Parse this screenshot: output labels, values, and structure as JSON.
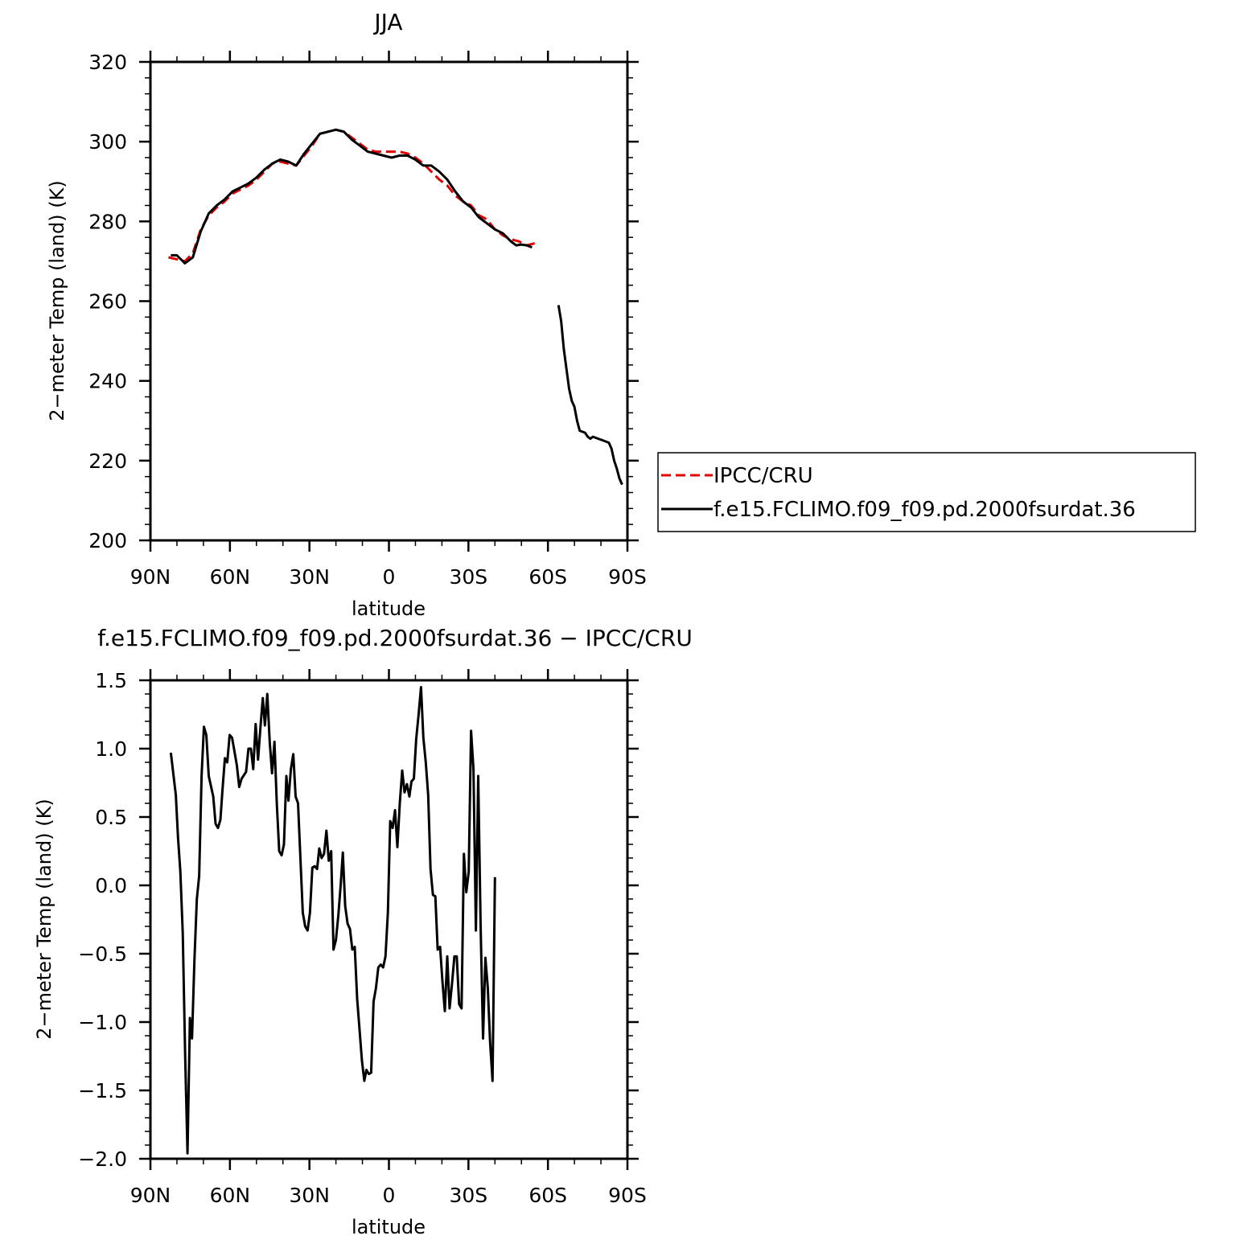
{
  "chart_data": [
    {
      "type": "line",
      "title": "JJA",
      "xlabel": "latitude",
      "ylabel": "2−meter Temp (land) (K)",
      "xlim": [
        90,
        -90
      ],
      "ylim": [
        200,
        320
      ],
      "x_tick_values": [
        90,
        60,
        30,
        0,
        -30,
        -60,
        -90
      ],
      "x_tick_labels": [
        "90N",
        "60N",
        "30N",
        "0",
        "30S",
        "60S",
        "90S"
      ],
      "y_tick_values": [
        200,
        220,
        240,
        260,
        280,
        300,
        320
      ],
      "y_tick_labels": [
        "200",
        "220",
        "240",
        "260",
        "280",
        "300",
        "320"
      ],
      "legend_position": "right",
      "series": [
        {
          "name": "IPCC/CRU",
          "color": "#e00000",
          "style": "dashed",
          "points": [
            [
              83.2,
              271
            ],
            [
              80,
              270.5
            ],
            [
              77,
              270
            ],
            [
              74,
              272
            ],
            [
              71,
              278
            ],
            [
              68,
              281.5
            ],
            [
              65,
              283.5
            ],
            [
              62,
              285
            ],
            [
              59,
              287
            ],
            [
              56,
              288
            ],
            [
              53,
              289
            ],
            [
              50,
              290.5
            ],
            [
              47,
              292.5
            ],
            [
              44,
              294.5
            ],
            [
              41,
              295
            ],
            [
              38,
              294.5
            ],
            [
              35,
              294
            ],
            [
              32,
              296.5
            ],
            [
              29,
              299
            ],
            [
              26,
              302
            ],
            [
              23,
              302.5
            ],
            [
              20,
              303
            ],
            [
              17,
              302.5
            ],
            [
              14,
              301
            ],
            [
              11,
              299.5
            ],
            [
              8,
              298
            ],
            [
              5,
              297.5
            ],
            [
              2,
              297.5
            ],
            [
              -1,
              297.5
            ],
            [
              -4,
              297.5
            ],
            [
              -7,
              297
            ],
            [
              -10,
              296
            ],
            [
              -13,
              294.5
            ],
            [
              -16,
              292.5
            ],
            [
              -19,
              290.5
            ],
            [
              -22,
              289
            ],
            [
              -25,
              286.5
            ],
            [
              -28,
              285
            ],
            [
              -31,
              284
            ],
            [
              -34,
              281.5
            ],
            [
              -37,
              280.5
            ],
            [
              -40,
              278
            ],
            [
              -43,
              276.5
            ],
            [
              -46,
              275.5
            ],
            [
              -49,
              275
            ],
            [
              -52,
              274
            ],
            [
              -55,
              274.5
            ]
          ]
        },
        {
          "name": "f.e15.FCLIMO.f09_f09.pd.2000fsurdat.36",
          "color": "#000000",
          "style": "solid",
          "points": [
            [
              82.3,
              271.5
            ],
            [
              80,
              271.5
            ],
            [
              77,
              269.5
            ],
            [
              74,
              271
            ],
            [
              71,
              277.5
            ],
            [
              68,
              282
            ],
            [
              65,
              284
            ],
            [
              62,
              285.5
            ],
            [
              59,
              287.5
            ],
            [
              56,
              288.5
            ],
            [
              53,
              289.5
            ],
            [
              50,
              291
            ],
            [
              47,
              293
            ],
            [
              44,
              294.5
            ],
            [
              41,
              295.5
            ],
            [
              38,
              295
            ],
            [
              35,
              294
            ],
            [
              32,
              297
            ],
            [
              29,
              299.5
            ],
            [
              26,
              302
            ],
            [
              23,
              302.5
            ],
            [
              20,
              303
            ],
            [
              17,
              302.5
            ],
            [
              14,
              300.5
            ],
            [
              11,
              299
            ],
            [
              8,
              297.5
            ],
            [
              5,
              297
            ],
            [
              2,
              296.5
            ],
            [
              -1,
              296
            ],
            [
              -4,
              296.5
            ],
            [
              -7,
              296.5
            ],
            [
              -10,
              295.5
            ],
            [
              -13,
              294
            ],
            [
              -16,
              294
            ],
            [
              -19,
              292.5
            ],
            [
              -22,
              290.5
            ],
            [
              -25,
              287.5
            ],
            [
              -28,
              285
            ],
            [
              -31,
              283.5
            ],
            [
              -34,
              281
            ],
            [
              -37,
              279.5
            ],
            [
              -40,
              278
            ],
            [
              -43,
              277
            ],
            [
              -46,
              275
            ],
            [
              -48,
              274
            ],
            [
              -50,
              274.2
            ],
            [
              -52,
              274
            ],
            [
              -54,
              273.5
            ]
          ],
          "points_2": [
            [
              -64,
              259
            ],
            [
              -65,
              255
            ],
            [
              -66,
              248
            ],
            [
              -67,
              243
            ],
            [
              -68,
              238
            ],
            [
              -69,
              235
            ],
            [
              -70,
              233.5
            ],
            [
              -71,
              230
            ],
            [
              -72,
              227.5
            ],
            [
              -74,
              227
            ],
            [
              -75,
              226
            ],
            [
              -76,
              225.5
            ],
            [
              -77,
              226
            ],
            [
              -79,
              225.5
            ],
            [
              -81,
              225
            ],
            [
              -83,
              224.5
            ],
            [
              -84,
              223
            ],
            [
              -85,
              220
            ],
            [
              -86,
              218
            ],
            [
              -87,
              215.5
            ],
            [
              -88,
              214
            ]
          ]
        }
      ]
    },
    {
      "type": "line",
      "title": "f.e15.FCLIMO.f09_f09.pd.2000fsurdat.36 − IPCC/CRU",
      "xlabel": "latitude",
      "ylabel": "2−meter Temp (land) (K)",
      "xlim": [
        90,
        -90
      ],
      "ylim": [
        -2.0,
        1.5
      ],
      "x_tick_values": [
        90,
        60,
        30,
        0,
        -30,
        -60,
        -90
      ],
      "x_tick_labels": [
        "90N",
        "60N",
        "30N",
        "0",
        "30S",
        "60S",
        "90S"
      ],
      "y_tick_values": [
        -2.0,
        -1.5,
        -1.0,
        -0.5,
        0.0,
        0.5,
        1.0,
        1.5
      ],
      "y_tick_labels": [
        "−2.0",
        "−1.5",
        "−1.0",
        "−0.5",
        "0.0",
        "0.5",
        "1.0",
        "1.5"
      ],
      "series": [
        {
          "color": "#000000",
          "style": "solid",
          "points": [
            [
              82.3,
              0.97
            ],
            [
              80.4,
              0.66
            ],
            [
              79.6,
              0.35
            ],
            [
              78.7,
              0.1
            ],
            [
              77.8,
              -0.35
            ],
            [
              76.9,
              -1.25
            ],
            [
              76,
              -1.96
            ],
            [
              75.1,
              -0.97
            ],
            [
              74.3,
              -1.12
            ],
            [
              73.4,
              -0.55
            ],
            [
              72.5,
              -0.1
            ],
            [
              71.6,
              0.07
            ],
            [
              70.7,
              0.8
            ],
            [
              69.8,
              1.16
            ],
            [
              68.9,
              1.1
            ],
            [
              68,
              0.8
            ],
            [
              66.3,
              0.65
            ],
            [
              65.4,
              0.45
            ],
            [
              64.5,
              0.42
            ],
            [
              63.6,
              0.48
            ],
            [
              62.8,
              0.7
            ],
            [
              61.9,
              0.93
            ],
            [
              61,
              0.9
            ],
            [
              60.1,
              1.1
            ],
            [
              59.2,
              1.08
            ],
            [
              57.4,
              0.88
            ],
            [
              56.5,
              0.72
            ],
            [
              55.6,
              0.78
            ],
            [
              53.9,
              0.83
            ],
            [
              53,
              1.0
            ],
            [
              52.1,
              1.0
            ],
            [
              51.2,
              0.85
            ],
            [
              50.3,
              1.18
            ],
            [
              49.4,
              0.92
            ],
            [
              48.5,
              1.15
            ],
            [
              47.6,
              1.37
            ],
            [
              46.8,
              1.17
            ],
            [
              45.9,
              1.4
            ],
            [
              45,
              1.05
            ],
            [
              44.1,
              0.82
            ],
            [
              43.2,
              1.05
            ],
            [
              42.3,
              0.6
            ],
            [
              41.4,
              0.25
            ],
            [
              40.5,
              0.22
            ],
            [
              39.6,
              0.3
            ],
            [
              38.7,
              0.8
            ],
            [
              37.9,
              0.62
            ],
            [
              37,
              0.85
            ],
            [
              36.1,
              0.96
            ],
            [
              35.2,
              0.65
            ],
            [
              34.3,
              0.6
            ],
            [
              32.5,
              -0.2
            ],
            [
              31.6,
              -0.3
            ],
            [
              30.7,
              -0.33
            ],
            [
              29.8,
              -0.2
            ],
            [
              28.9,
              0.13
            ],
            [
              28,
              0.14
            ],
            [
              27.1,
              0.12
            ],
            [
              26.3,
              0.27
            ],
            [
              25.4,
              0.2
            ],
            [
              24.5,
              0.23
            ],
            [
              23.6,
              0.4
            ],
            [
              22.7,
              0.18
            ],
            [
              21.8,
              0.25
            ],
            [
              20.9,
              -0.47
            ],
            [
              20,
              -0.4
            ],
            [
              19.1,
              -0.22
            ],
            [
              18.2,
              0.0
            ],
            [
              17.4,
              0.24
            ],
            [
              16.5,
              -0.15
            ],
            [
              15.6,
              -0.28
            ],
            [
              14.7,
              -0.32
            ],
            [
              13.8,
              -0.47
            ],
            [
              12.9,
              -0.45
            ],
            [
              12,
              -0.83
            ],
            [
              11.1,
              -1.05
            ],
            [
              10.2,
              -1.28
            ],
            [
              9.3,
              -1.43
            ],
            [
              8.5,
              -1.35
            ],
            [
              7.6,
              -1.38
            ],
            [
              6.7,
              -1.37
            ],
            [
              5.8,
              -0.85
            ],
            [
              4.9,
              -0.75
            ],
            [
              4,
              -0.6
            ],
            [
              3.1,
              -0.58
            ],
            [
              2.2,
              -0.6
            ],
            [
              1.3,
              -0.52
            ],
            [
              0.4,
              -0.2
            ],
            [
              -0.5,
              0.47
            ],
            [
              -1.4,
              0.42
            ],
            [
              -2.3,
              0.55
            ],
            [
              -3.2,
              0.28
            ],
            [
              -4.1,
              0.6
            ],
            [
              -5,
              0.84
            ],
            [
              -5.9,
              0.68
            ],
            [
              -6.8,
              0.74
            ],
            [
              -7.7,
              0.65
            ],
            [
              -8.5,
              0.76
            ],
            [
              -9.4,
              0.78
            ],
            [
              -10.3,
              1.07
            ],
            [
              -11.2,
              1.25
            ],
            [
              -12.1,
              1.45
            ],
            [
              -13,
              1.08
            ],
            [
              -13.9,
              0.9
            ],
            [
              -14.8,
              0.66
            ],
            [
              -15.7,
              0.12
            ],
            [
              -16.6,
              -0.07
            ],
            [
              -17.5,
              -0.08
            ],
            [
              -18.4,
              -0.47
            ],
            [
              -19.3,
              -0.45
            ],
            [
              -20.2,
              -0.7
            ],
            [
              -21.1,
              -0.92
            ],
            [
              -22,
              -0.52
            ],
            [
              -22.9,
              -0.9
            ],
            [
              -23.8,
              -0.72
            ],
            [
              -24.7,
              -0.52
            ],
            [
              -25.6,
              -0.52
            ],
            [
              -26.5,
              -0.87
            ],
            [
              -27.4,
              -0.9
            ],
            [
              -28.3,
              0.23
            ],
            [
              -29.2,
              -0.05
            ],
            [
              -30.1,
              0.1
            ],
            [
              -31,
              1.13
            ],
            [
              -31.9,
              0.85
            ],
            [
              -32.8,
              -0.33
            ],
            [
              -33.7,
              0.8
            ],
            [
              -34.6,
              -0.3
            ],
            [
              -35.5,
              -1.12
            ],
            [
              -36.4,
              -0.53
            ],
            [
              -37.3,
              -0.75
            ],
            [
              -38.2,
              -1.15
            ],
            [
              -39.1,
              -1.43
            ],
            [
              -40,
              0.06
            ]
          ]
        }
      ]
    }
  ]
}
